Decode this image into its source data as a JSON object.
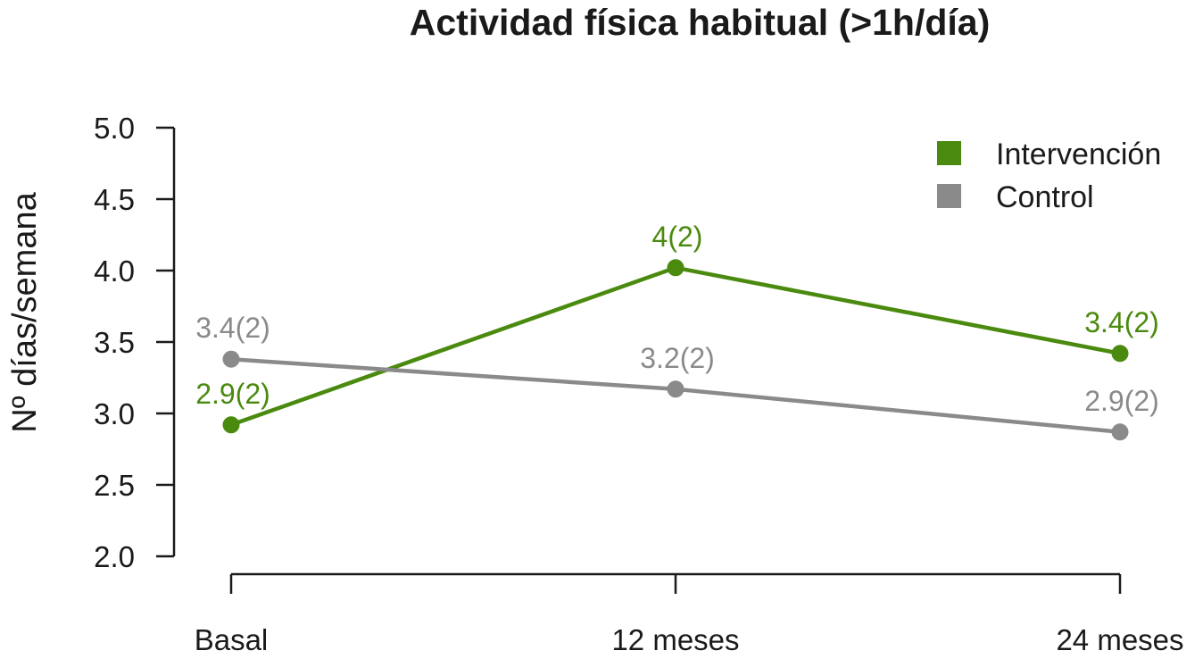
{
  "chart_data": {
    "type": "line",
    "title": "Actividad física habitual (>1h/día)",
    "xlabel": "",
    "ylabel": "Nº días/semana",
    "categories": [
      "Basal",
      "12 meses",
      "24 meses"
    ],
    "ylim": [
      2.0,
      5.0
    ],
    "yticks": [
      "2.0",
      "2.5",
      "3.0",
      "3.5",
      "4.0",
      "4.5",
      "5.0"
    ],
    "grid": false,
    "legend_position": "top-right",
    "series": [
      {
        "name": "Intervención",
        "color": "#4a8a0e",
        "values": [
          2.92,
          4.02,
          3.42
        ],
        "labels": [
          "2.9(2)",
          "4(2)",
          "3.4(2)"
        ]
      },
      {
        "name": "Control",
        "color": "#8a8a8a",
        "values": [
          3.38,
          3.17,
          2.87
        ],
        "labels": [
          "3.4(2)",
          "3.2(2)",
          "2.9(2)"
        ]
      }
    ]
  }
}
